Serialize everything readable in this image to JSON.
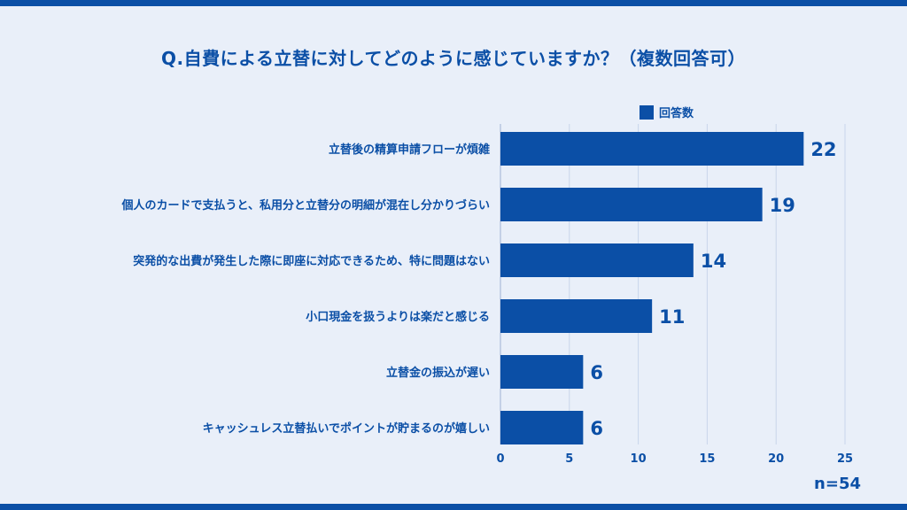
{
  "title": "Q.自費による立替に対してどのように感じていますか？（複数回答可）",
  "note": "n=54",
  "colors": {
    "accent": "#0b4fa6",
    "background": "#e9eff9",
    "grid": "#c9d5ea"
  },
  "chart_data": {
    "type": "bar",
    "orientation": "horizontal",
    "categories": [
      "立替後の精算申請フローが煩雑",
      "個人のカードで支払うと、私用分と立替分の明細が混在し分かりづらい",
      "突発的な出費が発生した際に即座に対応できるため、特に問題はない",
      "小口現金を扱うよりは楽だと感じる",
      "立替金の振込が遅い",
      "キャッシュレス立替払いでポイントが貯まるのが嬉しい"
    ],
    "series": [
      {
        "name": "回答数",
        "values": [
          22,
          19,
          14,
          11,
          6,
          6
        ]
      }
    ],
    "xlim": [
      0,
      25
    ],
    "xticks": [
      0,
      5,
      10,
      15,
      20,
      25
    ],
    "grid": true,
    "legend": "top-center",
    "data_labels": true
  }
}
